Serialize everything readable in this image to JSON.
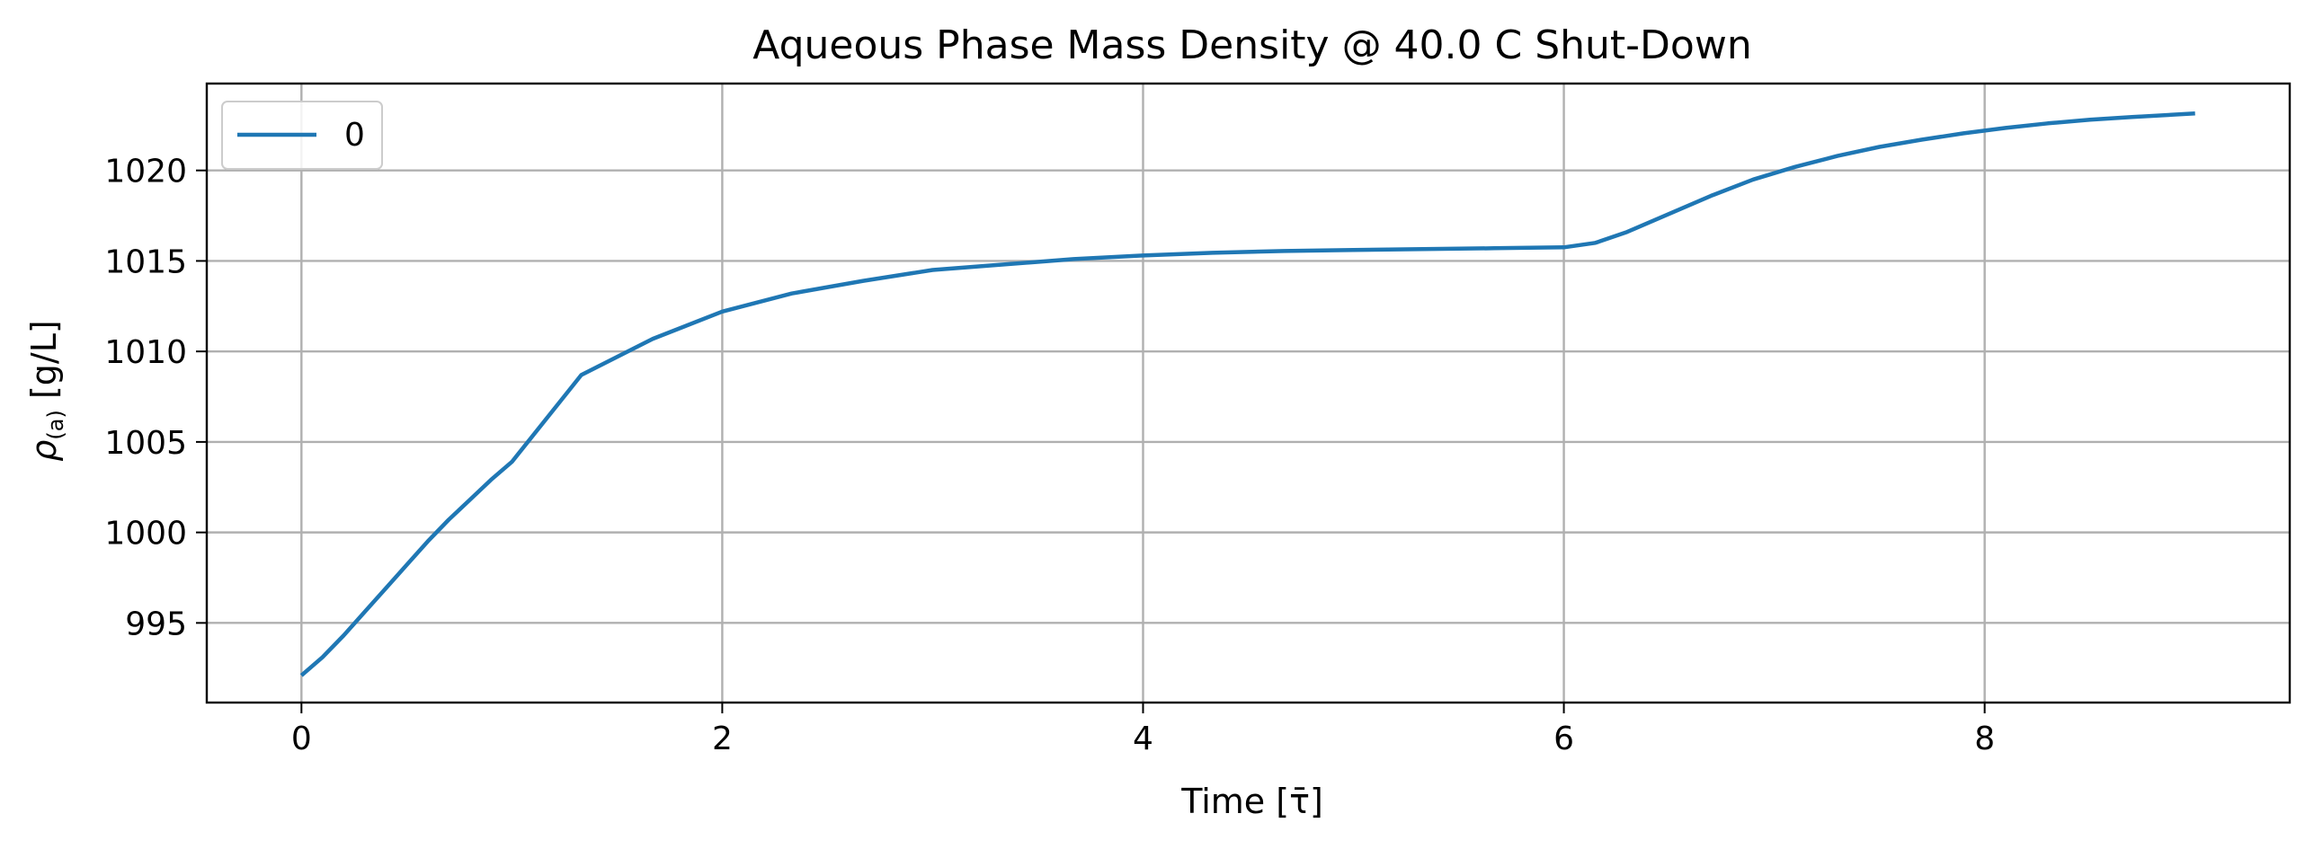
{
  "chart_data": {
    "type": "line",
    "title": "Aqueous Phase Mass Density @ 40.0 C Shut-Down",
    "xlabel": "Time [τ̄]",
    "ylabel_main": "ρ",
    "ylabel_sub": "(a)",
    "ylabel_unit": " [g/L]",
    "xlim": [
      -0.45,
      9.45
    ],
    "ylim": [
      990.6,
      1024.8
    ],
    "xticks": [
      0,
      2,
      4,
      6,
      8
    ],
    "yticks": [
      995,
      1000,
      1005,
      1010,
      1015,
      1020
    ],
    "grid": true,
    "legend_position": "top-left",
    "series": [
      {
        "name": "0",
        "color": "#1f77b4",
        "x": [
          0,
          0.1,
          0.2,
          0.3,
          0.4,
          0.5,
          0.6,
          0.7,
          0.8,
          0.9,
          1.0,
          1.33,
          1.67,
          2.0,
          2.33,
          2.67,
          3.0,
          3.33,
          3.67,
          4.0,
          4.33,
          4.67,
          5.0,
          5.33,
          5.67,
          6.0,
          6.15,
          6.3,
          6.5,
          6.7,
          6.9,
          7.1,
          7.3,
          7.5,
          7.7,
          7.9,
          8.1,
          8.3,
          8.5,
          8.7,
          9.0
        ],
        "y": [
          992.1,
          993.1,
          994.3,
          995.6,
          996.9,
          998.2,
          999.5,
          1000.7,
          1001.8,
          1002.9,
          1003.9,
          1008.7,
          1010.7,
          1012.2,
          1013.2,
          1013.9,
          1014.5,
          1014.8,
          1015.1,
          1015.3,
          1015.45,
          1015.55,
          1015.6,
          1015.65,
          1015.7,
          1015.75,
          1016.0,
          1016.6,
          1017.6,
          1018.6,
          1019.5,
          1020.2,
          1020.8,
          1021.3,
          1021.7,
          1022.05,
          1022.35,
          1022.6,
          1022.8,
          1022.95,
          1023.15
        ]
      }
    ]
  }
}
